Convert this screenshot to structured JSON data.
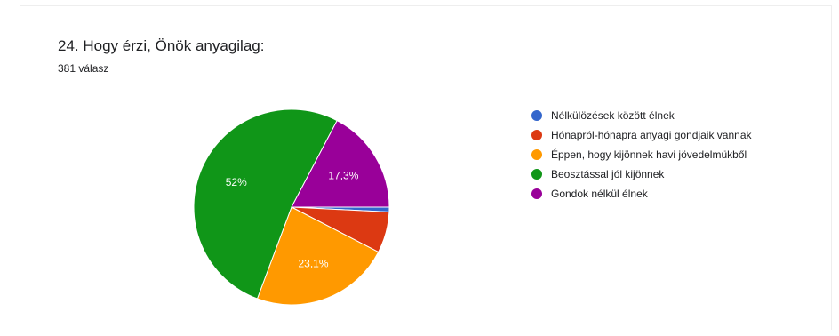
{
  "title": "24. Hogy érzi, Önök anyagilag:",
  "responses": "381 válasz",
  "chart_data": {
    "type": "pie",
    "categories": [
      "Nélkülözések között élnek",
      "Hónapról-hónapra anyagi gondjaik vannak",
      "Éppen, hogy kijönnek havi jövedelmükből",
      "Beosztással jól kijönnek",
      "Gondok nélkül élnek"
    ],
    "values": [
      0.8,
      6.8,
      23.1,
      52,
      17.3
    ],
    "labels": [
      "",
      "",
      "23,1%",
      "52%",
      "17,3%"
    ],
    "colors": [
      "#3366cc",
      "#dc3912",
      "#ff9900",
      "#109618",
      "#990099"
    ],
    "legend_position": "right"
  }
}
